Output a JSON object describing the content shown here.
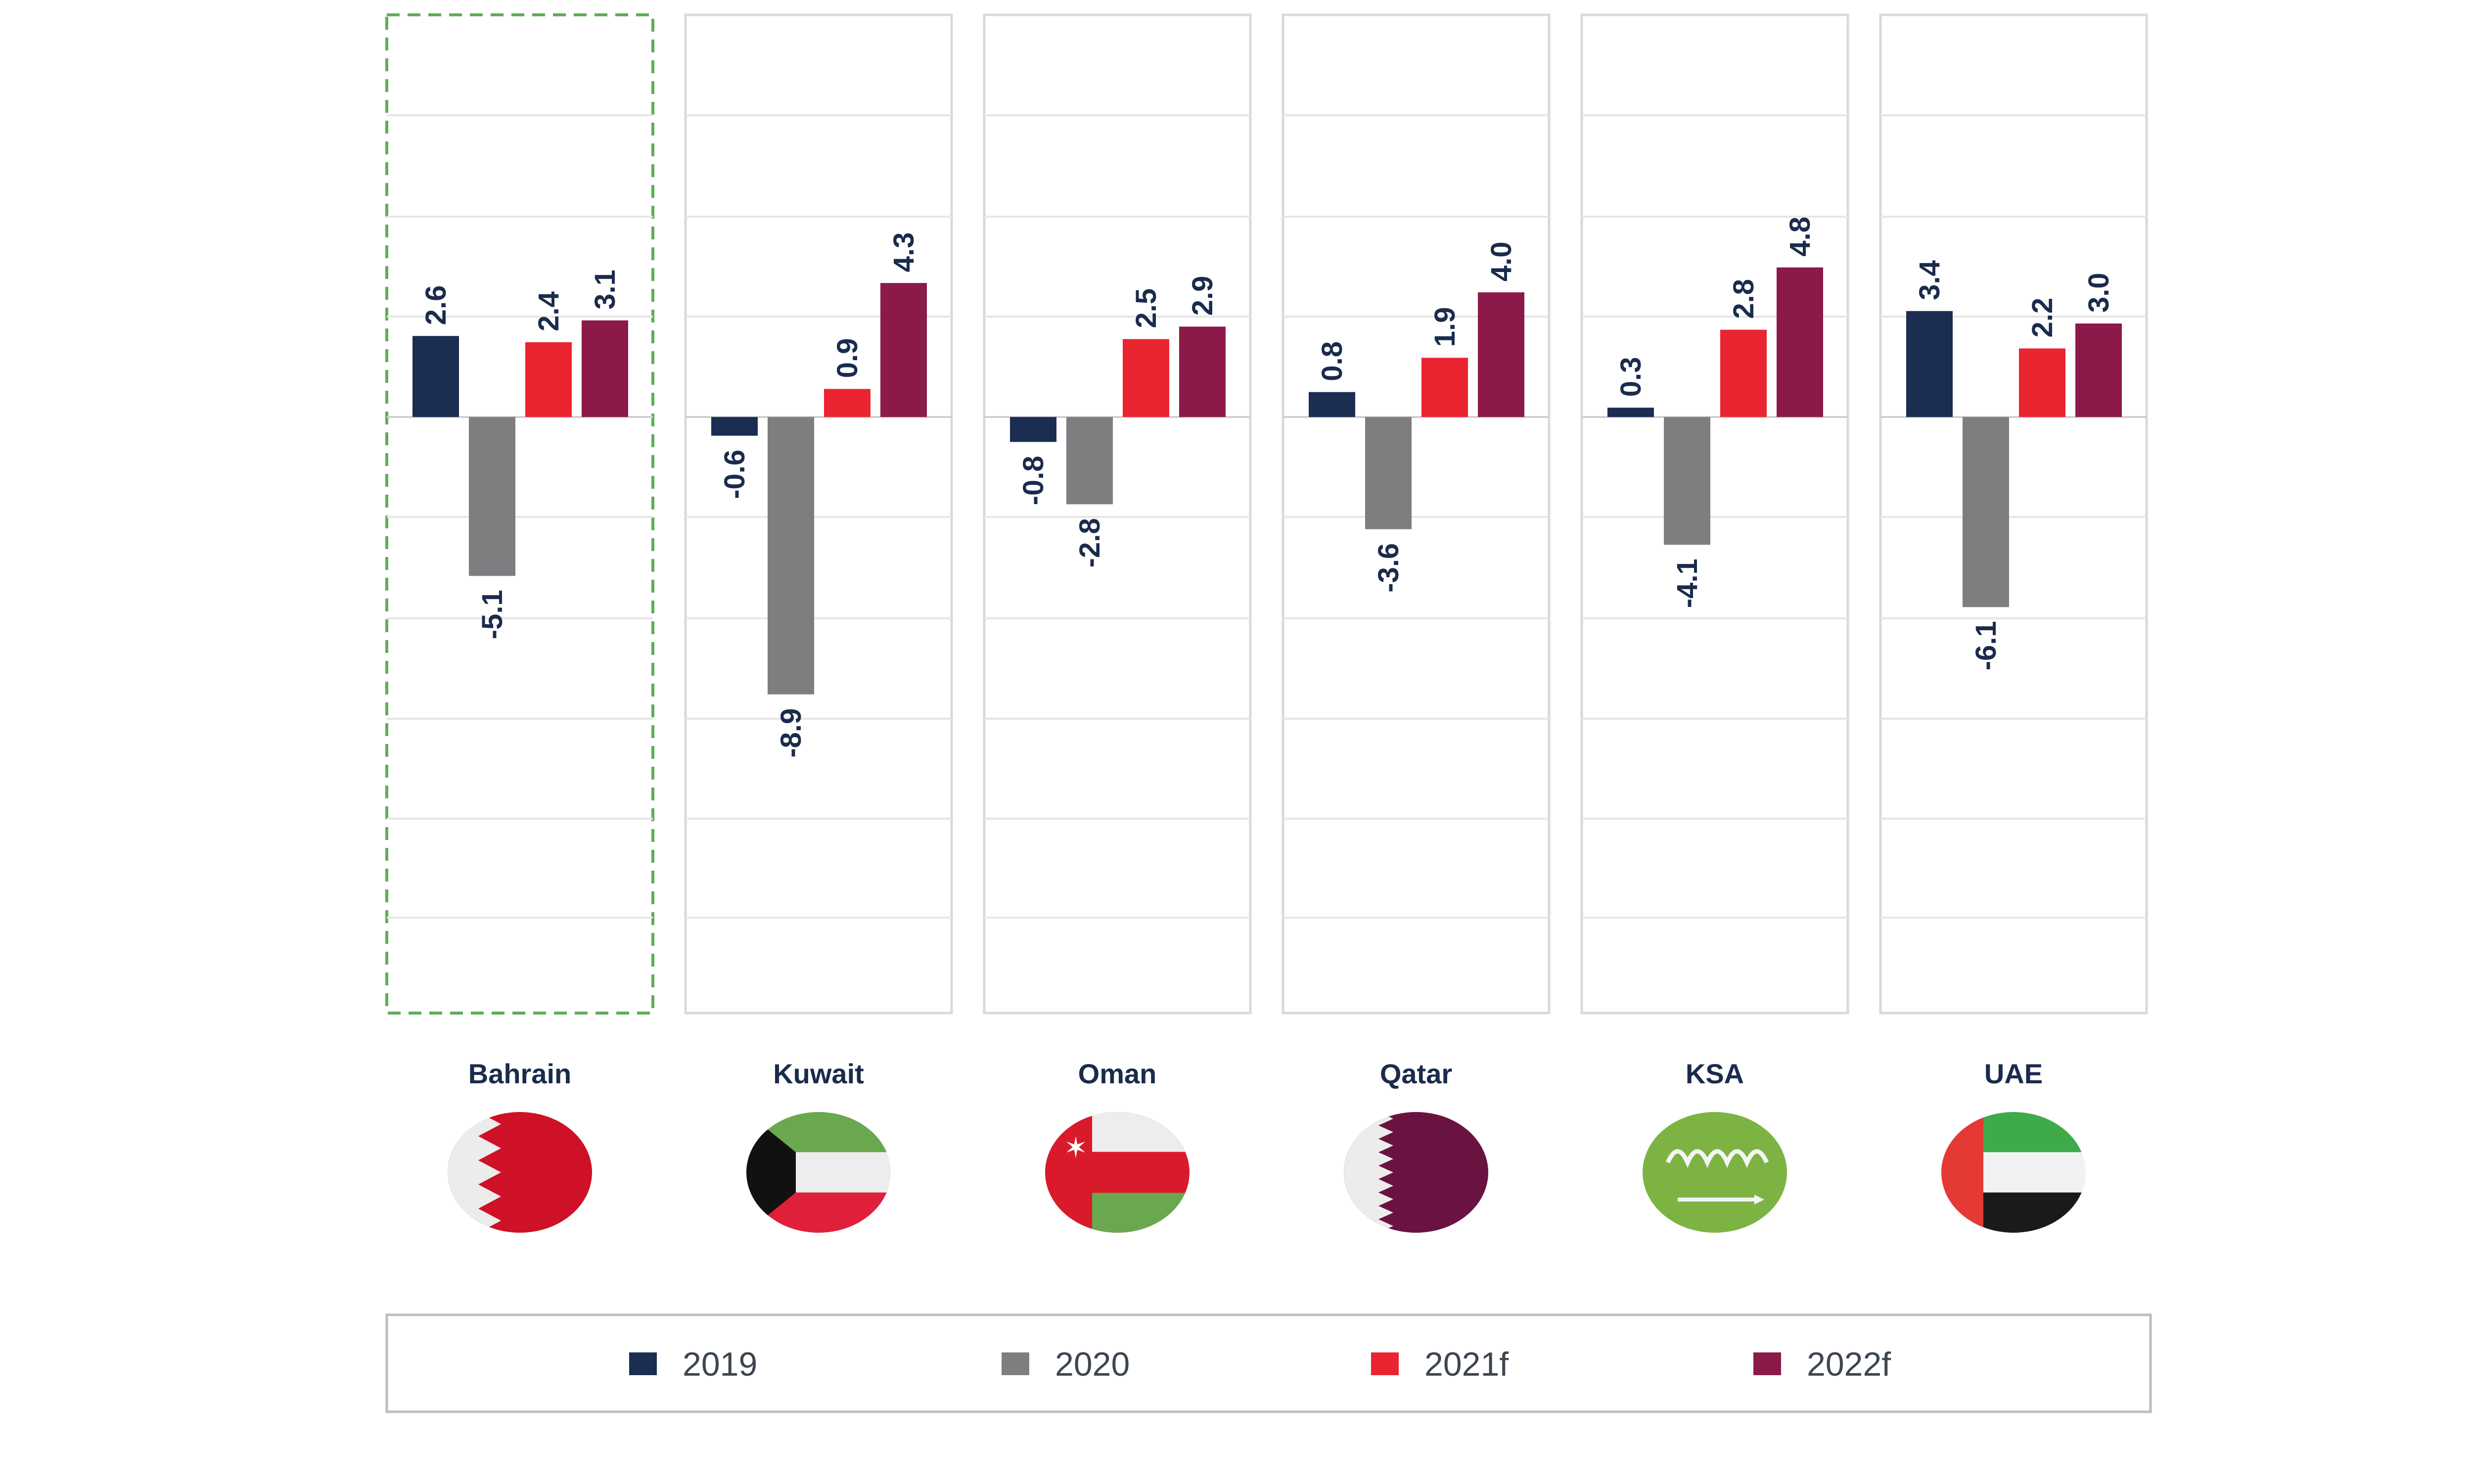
{
  "chart_data": {
    "type": "bar",
    "categories": [
      "Bahrain",
      "Kuwait",
      "Oman",
      "Qatar",
      "KSA",
      "UAE"
    ],
    "series": [
      {
        "name": "2019",
        "color": "#1b2d51",
        "values": [
          2.6,
          -0.6,
          -0.8,
          0.8,
          0.3,
          3.4
        ]
      },
      {
        "name": "2020",
        "color": "#7d7e80",
        "values": [
          -5.1,
          -8.9,
          -2.8,
          -3.6,
          -4.1,
          -6.1
        ]
      },
      {
        "name": "2021f",
        "color": "#ea2430",
        "values": [
          2.4,
          0.9,
          2.5,
          1.9,
          2.8,
          2.2
        ]
      },
      {
        "name": "2022f",
        "color": "#8b1a4a",
        "values": [
          3.1,
          4.3,
          2.9,
          4.0,
          4.8,
          3.0
        ]
      }
    ],
    "labels": [
      [
        "2.6",
        "-5.1",
        "2.4",
        "3.1"
      ],
      [
        "-0.6",
        "-8.9",
        "0.9",
        "4.3"
      ],
      [
        "-0.8",
        "-2.8",
        "2.5",
        "2.9"
      ],
      [
        "0.8",
        "-3.6",
        "1.9",
        "4.0"
      ],
      [
        "0.3",
        "-4.1",
        "2.8",
        "4.8"
      ],
      [
        "3.4",
        "-6.1",
        "2.2",
        "3.0"
      ]
    ],
    "highlighted_category": "Bahrain",
    "legend_position": "bottom",
    "grid": true,
    "ylim": [
      -11.8,
      8.0
    ]
  },
  "flags": [
    "bahrain-flag-icon",
    "kuwait-flag-icon",
    "oman-flag-icon",
    "qatar-flag-icon",
    "saudi-arabia-flag-icon",
    "uae-flag-icon"
  ]
}
